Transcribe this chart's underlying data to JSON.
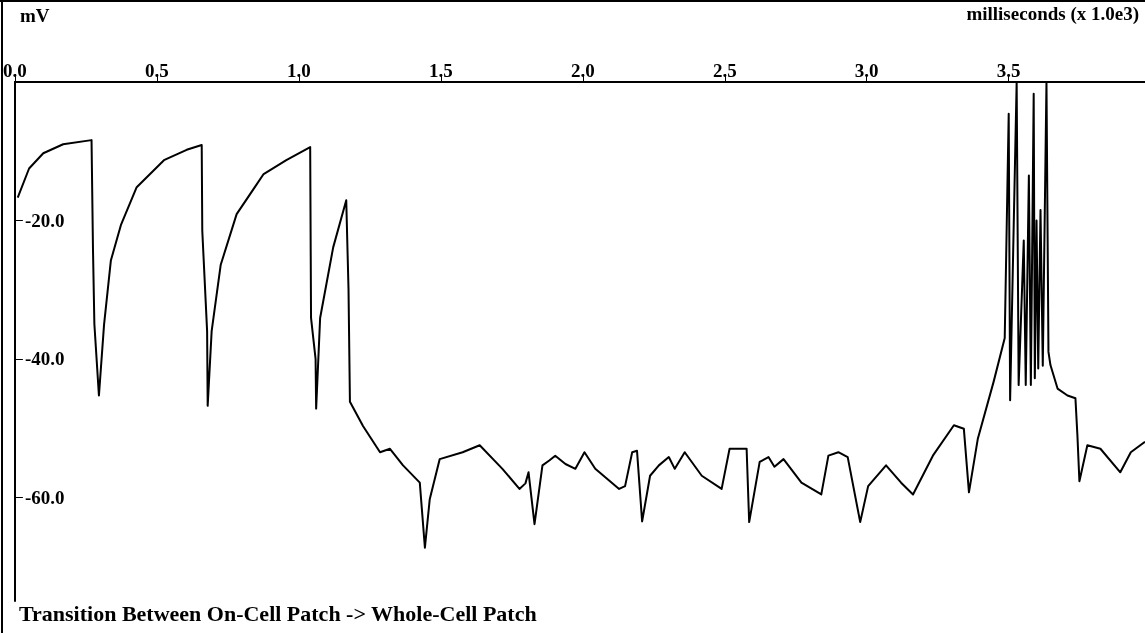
{
  "chart_data": {
    "type": "line",
    "title": "Transition Between On-Cell Patch -> Whole-Cell Patch",
    "xlabel": "milliseconds (x 1.0e3)",
    "ylabel": "mV",
    "xlim": [
      0,
      3.98
    ],
    "ylim": [
      -75,
      0
    ],
    "xticks": [
      {
        "value": 0,
        "label": "0.0"
      },
      {
        "value": 0.5,
        "label": "0.5"
      },
      {
        "value": 1,
        "label": "1.0"
      },
      {
        "value": 1.5,
        "label": "1.5"
      },
      {
        "value": 2,
        "label": "2.0"
      },
      {
        "value": 2.5,
        "label": "2.5"
      },
      {
        "value": 3,
        "label": "3.0"
      },
      {
        "value": 3.5,
        "label": "3.5"
      }
    ],
    "yticks": [
      {
        "value": -20,
        "label": "-20.0"
      },
      {
        "value": -40,
        "label": "-40.0"
      },
      {
        "value": -60,
        "label": "-60.0"
      }
    ],
    "grid": false,
    "marker": "none",
    "line_style": "solid",
    "series": [
      {
        "color": "#000000",
        "x": [
          0.01,
          0.05,
          0.1,
          0.17,
          0.27,
          0.275,
          0.28,
          0.296,
          0.314,
          0.338,
          0.374,
          0.429,
          0.525,
          0.605,
          0.658,
          0.66,
          0.677,
          0.679,
          0.693,
          0.725,
          0.781,
          0.876,
          0.956,
          1.04,
          1.043,
          1.059,
          1.061,
          1.075,
          1.121,
          1.167,
          1.175,
          1.18,
          1.226,
          1.286,
          1.321,
          1.367,
          1.426,
          1.444,
          1.461,
          1.496,
          1.577,
          1.637,
          1.717,
          1.777,
          1.798,
          1.809,
          1.83,
          1.858,
          1.882,
          1.903,
          1.939,
          1.974,
          2.006,
          2.044,
          2.128,
          2.149,
          2.174,
          2.191,
          2.209,
          2.237,
          2.268,
          2.303,
          2.324,
          2.359,
          2.419,
          2.489,
          2.517,
          2.577,
          2.586,
          2.623,
          2.654,
          2.675,
          2.707,
          2.77,
          2.84,
          2.865,
          2.9,
          2.933,
          2.977,
          3.005,
          3.068,
          3.121,
          3.163,
          3.233,
          3.307,
          3.342,
          3.36,
          3.391,
          3.447,
          3.486,
          3.5,
          3.505,
          3.528,
          3.535,
          3.553,
          3.56,
          3.571,
          3.578,
          3.588,
          3.592,
          3.598,
          3.604,
          3.612,
          3.62,
          3.633,
          3.64,
          3.647,
          3.672,
          3.707,
          3.735,
          3.742,
          3.749,
          3.777,
          3.823,
          3.893,
          3.93,
          3.98
        ],
        "values": [
          -16.7,
          -12.5,
          -10.3,
          -9,
          -8.4,
          -24,
          -35,
          -45.3,
          -35.1,
          -25.8,
          -20.6,
          -15.2,
          -11.3,
          -9.8,
          -9.1,
          -21.5,
          -36,
          -46.8,
          -36,
          -26.4,
          -19.1,
          -13.3,
          -11.3,
          -9.4,
          -34.1,
          -40,
          -47.2,
          -34.1,
          -23.9,
          -17.1,
          -30,
          -46.2,
          -49.7,
          -53.5,
          -53,
          -55.4,
          -57.9,
          -67.3,
          -60.3,
          -54.5,
          -53.5,
          -52.5,
          -55.9,
          -58.8,
          -58,
          -56.4,
          -63.9,
          -55.4,
          -54.7,
          -54,
          -55.2,
          -55.9,
          -53.5,
          -55.9,
          -58.8,
          -58.4,
          -53.5,
          -53.3,
          -63.5,
          -56.9,
          -55.4,
          -54.2,
          -55.9,
          -53.5,
          -56.9,
          -58.8,
          -53,
          -53,
          -63.6,
          -54.9,
          -54.2,
          -55.6,
          -54.5,
          -57.9,
          -59.6,
          -54,
          -53.5,
          -54.2,
          -63.6,
          -58.4,
          -55.4,
          -57.9,
          -59.6,
          -54,
          -49.6,
          -50.1,
          -59.3,
          -51.6,
          -43.3,
          -37,
          -4.6,
          -46,
          0,
          -43.8,
          -22.9,
          -43.8,
          -13.5,
          -43.8,
          -1.7,
          -42.8,
          -20,
          -41.4,
          -18.5,
          -41,
          0,
          -39,
          -40.9,
          -44.3,
          -45.3,
          -45.7,
          -51.1,
          -57.7,
          -52.5,
          -53,
          -56.4,
          -53.5,
          -52
        ]
      }
    ]
  }
}
